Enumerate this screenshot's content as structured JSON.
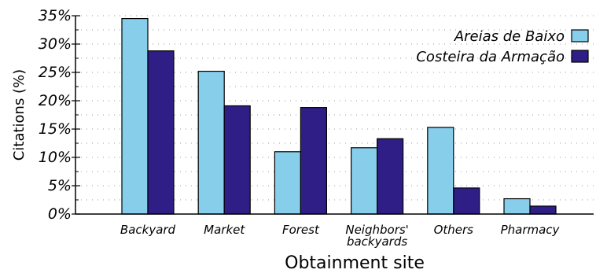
{
  "chart_data": {
    "type": "bar",
    "title": "",
    "xlabel": "Obtainment site",
    "ylabel": "Citations (%)",
    "categories": [
      [
        "Backyard"
      ],
      [
        "Market"
      ],
      [
        "Forest"
      ],
      [
        "Neighbors'",
        "backyards"
      ],
      [
        "Others"
      ],
      [
        "Pharmacy"
      ]
    ],
    "series": [
      {
        "name": "Areias de Baixo",
        "color": "#87ceeb",
        "values": [
          34.5,
          25.2,
          11.0,
          11.7,
          15.3,
          2.7
        ]
      },
      {
        "name": "Costeira da Armação",
        "color": "#2f1e86",
        "values": [
          28.8,
          19.1,
          18.8,
          13.3,
          4.6,
          1.4
        ]
      }
    ],
    "ylim": [
      0,
      35
    ],
    "yticks": [
      "0%",
      "5%",
      "10%",
      "15%",
      "20%",
      "25%",
      "30%",
      "35%"
    ],
    "ytick_step": 5,
    "minor_grid_step": 2.5,
    "grid": "dotted horizontal",
    "legend_position": "top-right"
  }
}
